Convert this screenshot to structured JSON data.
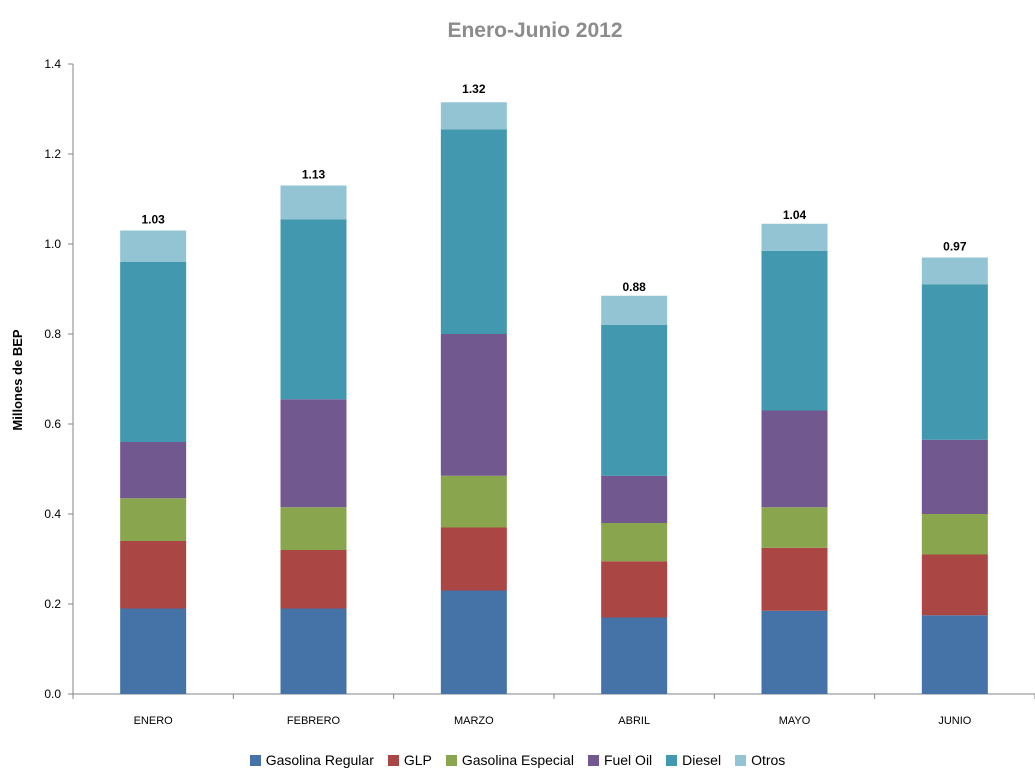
{
  "chart_data": {
    "type": "bar",
    "stacked": true,
    "title": "Enero-Junio 2012",
    "xlabel": "",
    "ylabel": "Millones de BEP",
    "ylim": [
      0,
      1.4
    ],
    "yticks": [
      "0.0",
      "0.2",
      "0.4",
      "0.6",
      "0.8",
      "1.0",
      "1.2",
      "1.4"
    ],
    "categories": [
      "ENERO",
      "FEBRERO",
      "MARZO",
      "ABRIL",
      "MAYO",
      "JUNIO"
    ],
    "totals": [
      "1.03",
      "1.13",
      "1.32",
      "0.88",
      "1.04",
      "0.97"
    ],
    "grid": false,
    "legend_position": "bottom",
    "series": [
      {
        "name": "Gasolina Regular",
        "color": "#4572a7",
        "values": [
          0.19,
          0.19,
          0.23,
          0.17,
          0.185,
          0.175
        ]
      },
      {
        "name": "GLP",
        "color": "#aa4643",
        "values": [
          0.15,
          0.13,
          0.14,
          0.125,
          0.14,
          0.135
        ]
      },
      {
        "name": "Gasolina Especial",
        "color": "#89a54e",
        "values": [
          0.095,
          0.095,
          0.115,
          0.085,
          0.09,
          0.09
        ]
      },
      {
        "name": "Fuel Oil",
        "color": "#71588f",
        "values": [
          0.125,
          0.24,
          0.315,
          0.105,
          0.215,
          0.165
        ]
      },
      {
        "name": "Diesel",
        "color": "#4198af",
        "values": [
          0.4,
          0.4,
          0.455,
          0.335,
          0.355,
          0.345
        ]
      },
      {
        "name": "Otros",
        "color": "#93c4d4",
        "values": [
          0.07,
          0.075,
          0.06,
          0.065,
          0.06,
          0.06
        ]
      }
    ]
  }
}
